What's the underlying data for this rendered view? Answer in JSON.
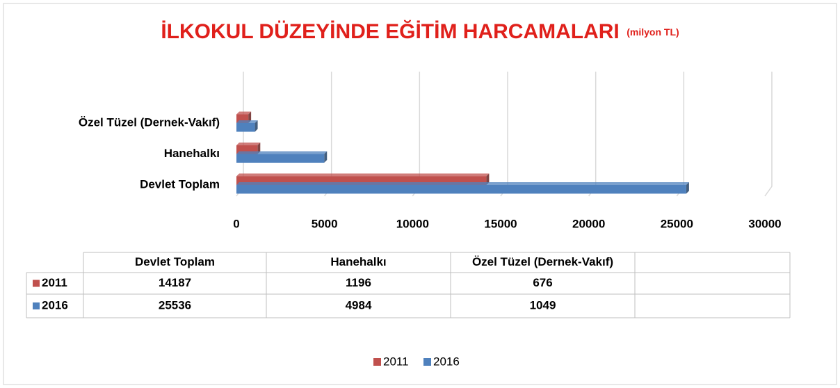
{
  "chart_data": {
    "type": "bar",
    "orientation": "horizontal",
    "title": "İLKOKUL DÜZEYİNDE EĞİTİM HARCAMALARI",
    "subtitle": "(milyon TL)",
    "categories": [
      "Devlet Toplam",
      "Hanehalkı",
      "Özel Tüzel (Dernek-Vakıf)"
    ],
    "series": [
      {
        "name": "2011",
        "color": "#c0504d",
        "values": [
          14187,
          1196,
          676
        ]
      },
      {
        "name": "2016",
        "color": "#4f81bd",
        "values": [
          25536,
          4984,
          1049
        ]
      }
    ],
    "xlim": [
      0,
      30000
    ],
    "xticks": [
      0,
      5000,
      10000,
      15000,
      20000,
      25000,
      30000
    ],
    "grid": true,
    "legend": "bottom",
    "data_table": true
  }
}
